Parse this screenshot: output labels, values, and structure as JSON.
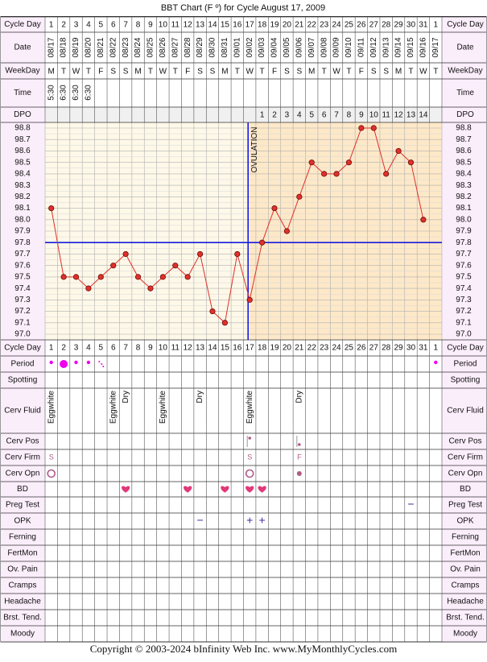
{
  "title": "BBT Chart (F º) for Cycle August 17, 2009",
  "copyright": "Copyright © 2003-2024 bInfinity Web Inc.     www.MyMonthlyCycles.com",
  "colors": {
    "follicular_bg": "#fdf8e8",
    "luteal_bg": "#fde8c8",
    "label_bg": "#fbeefb",
    "grid": "#b0b0b0",
    "coverline": "#1a1add",
    "temp_line": "#e0302a",
    "period": "#ee00ee",
    "bd_heart": "#e03a7a"
  },
  "row_labels": {
    "cycle_day": "Cycle Day",
    "date": "Date",
    "weekday": "WeekDay",
    "time": "Time",
    "dpo": "DPO",
    "period": "Period",
    "spotting": "Spotting",
    "cerv_fluid": "Cerv Fluid",
    "cerv_pos": "Cerv Pos",
    "cerv_firm": "Cerv Firm",
    "cerv_opn": "Cerv Opn",
    "bd": "BD",
    "preg_test": "Preg Test",
    "opk": "OPK",
    "ferning": "Ferning",
    "fertmon": "FertMon",
    "ov_pain": "Ov. Pain",
    "cramps": "Cramps",
    "headache": "Headache",
    "brst_tend": "Brst. Tend.",
    "moody": "Moody"
  },
  "columns": {
    "cycle_days": [
      "1",
      "2",
      "3",
      "4",
      "5",
      "6",
      "7",
      "8",
      "9",
      "10",
      "11",
      "12",
      "13",
      "14",
      "15",
      "16",
      "17",
      "18",
      "19",
      "20",
      "21",
      "22",
      "23",
      "24",
      "25",
      "26",
      "27",
      "28",
      "29",
      "30",
      "31",
      "1"
    ],
    "dates": [
      "08/17",
      "08/18",
      "08/19",
      "08/20",
      "08/21",
      "08/22",
      "08/23",
      "08/24",
      "08/25",
      "08/26",
      "08/27",
      "08/28",
      "08/29",
      "08/30",
      "08/31",
      "09/01",
      "09/02",
      "09/03",
      "09/04",
      "09/05",
      "09/06",
      "09/07",
      "09/08",
      "09/09",
      "09/10",
      "09/11",
      "09/12",
      "09/13",
      "09/14",
      "09/15",
      "09/16",
      "09/17"
    ],
    "weekdays": [
      "M",
      "T",
      "W",
      "T",
      "F",
      "S",
      "S",
      "M",
      "T",
      "W",
      "T",
      "F",
      "S",
      "S",
      "M",
      "T",
      "W",
      "T",
      "F",
      "S",
      "S",
      "M",
      "T",
      "W",
      "T",
      "F",
      "S",
      "S",
      "M",
      "T",
      "W",
      "T"
    ],
    "times": [
      "5:30",
      "6:30",
      "6:30",
      "6:30",
      "",
      "",
      "",
      "",
      "",
      "",
      "",
      "",
      "",
      "",
      "",
      "",
      "",
      "",
      "",
      "",
      "",
      "",
      "",
      "",
      "",
      "",
      "",
      "",
      "",
      "",
      "",
      ""
    ],
    "dpo": [
      "",
      "",
      "",
      "",
      "",
      "",
      "",
      "",
      "",
      "",
      "",
      "",
      "",
      "",
      "",
      "",
      "",
      "1",
      "2",
      "3",
      "4",
      "5",
      "6",
      "7",
      "8",
      "9",
      "10",
      "11",
      "12",
      "13",
      "14",
      ""
    ]
  },
  "chart_data": {
    "type": "line",
    "title": "BBT Chart (F º) for Cycle August 17, 2009",
    "x": [
      1,
      2,
      3,
      4,
      5,
      6,
      7,
      8,
      9,
      10,
      11,
      12,
      13,
      14,
      15,
      16,
      17,
      18,
      19,
      20,
      21,
      22,
      23,
      24,
      25,
      26,
      27,
      28,
      29,
      30,
      31
    ],
    "series": [
      {
        "values": [
          98.1,
          97.5,
          97.5,
          97.4,
          97.5,
          97.6,
          97.7,
          97.5,
          97.4,
          97.5,
          97.6,
          97.5,
          97.7,
          97.2,
          97.1,
          97.7,
          97.3,
          97.8,
          98.1,
          97.9,
          98.2,
          98.5,
          98.4,
          98.4,
          98.5,
          98.8,
          98.8,
          98.4,
          98.6,
          98.5,
          98.0
        ]
      }
    ],
    "y_ticks": [
      "98.8",
      "98.7",
      "98.6",
      "98.5",
      "98.4",
      "98.3",
      "98.2",
      "98.1",
      "98.0",
      "97.9",
      "97.8",
      "97.7",
      "97.6",
      "97.5",
      "97.4",
      "97.3",
      "97.2",
      "97.1",
      "97.0"
    ],
    "ylim": [
      97.0,
      98.8
    ],
    "coverline": 97.8,
    "ovulation_day": 17,
    "ovulation_label": "OVULATION",
    "grid": true
  },
  "observations": {
    "period": [
      {
        "day": 1,
        "kind": "small"
      },
      {
        "day": 2,
        "kind": "large"
      },
      {
        "day": 3,
        "kind": "small"
      },
      {
        "day": 4,
        "kind": "small"
      },
      {
        "day": 5,
        "kind": "spotting"
      },
      {
        "day": 32,
        "kind": "small"
      }
    ],
    "cerv_fluid": [
      {
        "day": 1,
        "text": "Eggwhite"
      },
      {
        "day": 6,
        "text": "Eggwhite"
      },
      {
        "day": 7,
        "text": "Dry"
      },
      {
        "day": 10,
        "text": "Eggwhite"
      },
      {
        "day": 13,
        "text": "Dry"
      },
      {
        "day": 17,
        "text": "Eggwhite"
      },
      {
        "day": 21,
        "text": "Dry"
      }
    ],
    "cerv_pos": [
      {
        "day": 17,
        "kind": "high"
      },
      {
        "day": 21,
        "kind": "low"
      }
    ],
    "cerv_firm": [
      {
        "day": 1,
        "text": "S"
      },
      {
        "day": 17,
        "text": "S"
      },
      {
        "day": 21,
        "text": "F"
      }
    ],
    "cerv_opn": [
      {
        "day": 1,
        "kind": "open"
      },
      {
        "day": 17,
        "kind": "open"
      },
      {
        "day": 21,
        "kind": "closed"
      }
    ],
    "bd": [
      7,
      12,
      15,
      17,
      18
    ],
    "preg_test": [
      {
        "day": 30,
        "text": "−"
      }
    ],
    "opk": [
      {
        "day": 13,
        "text": "−"
      },
      {
        "day": 17,
        "text": "+"
      },
      {
        "day": 18,
        "text": "+"
      }
    ]
  }
}
